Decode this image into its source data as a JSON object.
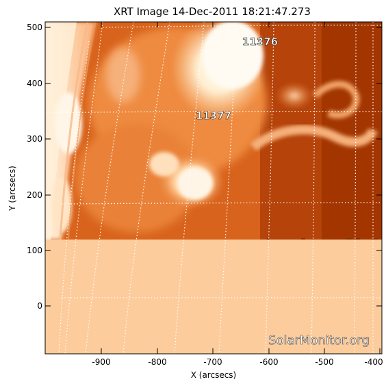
{
  "title": "XRT Image 14-Dec-2011 18:21:47.273",
  "x_axis": {
    "label": "X (arcsecs)",
    "ticks": [
      "-900",
      "-800",
      "-700",
      "-600",
      "-500",
      "-400"
    ]
  },
  "y_axis": {
    "label": "Y (arcsecs)",
    "ticks": [
      "500",
      "400",
      "300",
      "200",
      "100",
      "0"
    ]
  },
  "active_regions": [
    {
      "label": "11376"
    },
    {
      "label": "11377"
    }
  ],
  "watermark": "SolarMonitor.org",
  "colors": {
    "background": "#ffffff",
    "no_data_fill": "#fdcc9c",
    "corona_dark": "#a03300",
    "corona_mid": "#e06a1d",
    "corona_bright": "#fff2dc",
    "grid": "#ffffff"
  }
}
